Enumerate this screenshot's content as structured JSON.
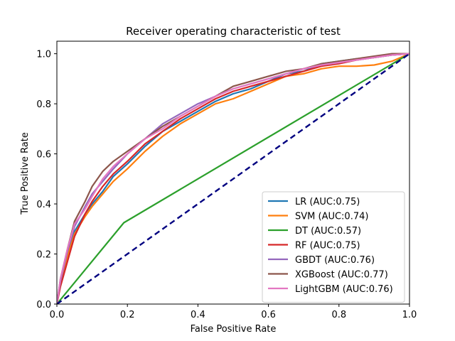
{
  "chart_data": {
    "type": "line",
    "title": "Receiver operating characteristic of test",
    "xlabel": "False Positive Rate",
    "ylabel": "True Positive Rate",
    "xlim": [
      0,
      1
    ],
    "ylim": [
      0,
      1.05
    ],
    "xticks": [
      "0.0",
      "0.2",
      "0.4",
      "0.6",
      "0.8",
      "1.0"
    ],
    "yticks": [
      "0.0",
      "0.2",
      "0.4",
      "0.6",
      "0.8",
      "1.0"
    ],
    "grid": false,
    "legend_position": "lower-right",
    "series": [
      {
        "name": "LR (AUC:0.75)",
        "color": "#1f77b4",
        "x": [
          0,
          0.01,
          0.03,
          0.05,
          0.08,
          0.1,
          0.13,
          0.16,
          0.2,
          0.25,
          0.3,
          0.35,
          0.4,
          0.45,
          0.5,
          0.55,
          0.6,
          0.65,
          0.7,
          0.75,
          0.8,
          0.85,
          0.9,
          0.95,
          1.0
        ],
        "y": [
          0,
          0.09,
          0.2,
          0.29,
          0.36,
          0.4,
          0.45,
          0.51,
          0.56,
          0.63,
          0.69,
          0.73,
          0.77,
          0.81,
          0.84,
          0.86,
          0.89,
          0.92,
          0.93,
          0.96,
          0.97,
          0.98,
          0.985,
          0.995,
          1.0
        ]
      },
      {
        "name": "SVM (AUC:0.74)",
        "color": "#ff7f0e",
        "x": [
          0,
          0.01,
          0.03,
          0.05,
          0.08,
          0.1,
          0.13,
          0.16,
          0.2,
          0.25,
          0.3,
          0.35,
          0.4,
          0.45,
          0.5,
          0.55,
          0.6,
          0.65,
          0.7,
          0.75,
          0.8,
          0.85,
          0.9,
          0.95,
          1.0
        ],
        "y": [
          0,
          0.08,
          0.19,
          0.28,
          0.35,
          0.39,
          0.44,
          0.49,
          0.54,
          0.61,
          0.67,
          0.72,
          0.76,
          0.8,
          0.82,
          0.85,
          0.88,
          0.91,
          0.92,
          0.94,
          0.95,
          0.95,
          0.955,
          0.97,
          1.0
        ]
      },
      {
        "name": "DT (AUC:0.57)",
        "color": "#2ca02c",
        "x": [
          0,
          0.19,
          1.0
        ],
        "y": [
          0,
          0.325,
          1.0
        ]
      },
      {
        "name": "RF (AUC:0.75)",
        "color": "#d62728",
        "x": [
          0,
          0.01,
          0.03,
          0.05,
          0.08,
          0.1,
          0.13,
          0.16,
          0.2,
          0.25,
          0.3,
          0.35,
          0.4,
          0.45,
          0.5,
          0.55,
          0.6,
          0.65,
          0.7,
          0.75,
          0.8,
          0.85,
          0.9,
          0.95,
          1.0
        ],
        "y": [
          0,
          0.07,
          0.17,
          0.27,
          0.36,
          0.41,
          0.47,
          0.52,
          0.57,
          0.64,
          0.69,
          0.74,
          0.78,
          0.82,
          0.85,
          0.87,
          0.89,
          0.91,
          0.93,
          0.95,
          0.96,
          0.975,
          0.985,
          0.995,
          1.0
        ]
      },
      {
        "name": "GBDT (AUC:0.76)",
        "color": "#9467bd",
        "x": [
          0,
          0.01,
          0.03,
          0.05,
          0.08,
          0.1,
          0.13,
          0.16,
          0.2,
          0.25,
          0.3,
          0.35,
          0.4,
          0.45,
          0.5,
          0.55,
          0.6,
          0.65,
          0.7,
          0.75,
          0.8,
          0.85,
          0.9,
          0.95,
          1.0
        ],
        "y": [
          0,
          0.09,
          0.21,
          0.31,
          0.39,
          0.44,
          0.49,
          0.54,
          0.6,
          0.66,
          0.72,
          0.76,
          0.8,
          0.83,
          0.86,
          0.88,
          0.9,
          0.92,
          0.94,
          0.955,
          0.965,
          0.975,
          0.985,
          0.995,
          1.0
        ]
      },
      {
        "name": "XGBoost (AUC:0.77)",
        "color": "#8c564b",
        "x": [
          0,
          0.01,
          0.03,
          0.05,
          0.08,
          0.1,
          0.13,
          0.16,
          0.2,
          0.25,
          0.3,
          0.35,
          0.4,
          0.45,
          0.5,
          0.55,
          0.6,
          0.65,
          0.7,
          0.75,
          0.8,
          0.85,
          0.9,
          0.95,
          1.0
        ],
        "y": [
          0,
          0.1,
          0.22,
          0.33,
          0.41,
          0.47,
          0.53,
          0.57,
          0.61,
          0.66,
          0.71,
          0.75,
          0.79,
          0.83,
          0.87,
          0.89,
          0.91,
          0.93,
          0.94,
          0.96,
          0.97,
          0.98,
          0.99,
          1.0,
          1.0
        ]
      },
      {
        "name": "LightGBM (AUC:0.76)",
        "color": "#e377c2",
        "x": [
          0,
          0.01,
          0.03,
          0.05,
          0.08,
          0.1,
          0.13,
          0.16,
          0.2,
          0.25,
          0.3,
          0.35,
          0.4,
          0.45,
          0.5,
          0.55,
          0.6,
          0.65,
          0.7,
          0.75,
          0.8,
          0.85,
          0.9,
          0.95,
          1.0
        ],
        "y": [
          0,
          0.1,
          0.22,
          0.32,
          0.38,
          0.43,
          0.5,
          0.55,
          0.6,
          0.66,
          0.7,
          0.75,
          0.79,
          0.83,
          0.86,
          0.88,
          0.9,
          0.92,
          0.94,
          0.955,
          0.965,
          0.975,
          0.985,
          0.995,
          1.0
        ]
      }
    ],
    "baseline": {
      "color": "#000080",
      "style": "dashed",
      "x": [
        0,
        1
      ],
      "y": [
        0,
        1
      ]
    }
  }
}
